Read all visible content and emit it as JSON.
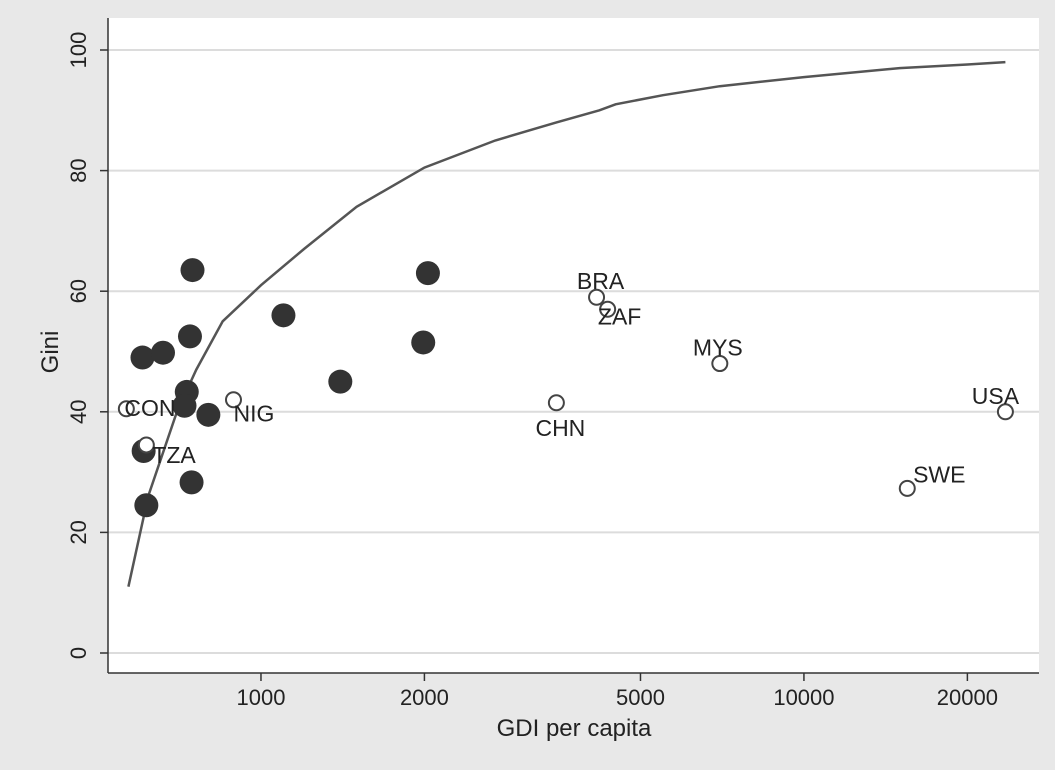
{
  "chart_data": {
    "type": "scatter",
    "xlabel": "GDI per capita",
    "ylabel": "Gini",
    "x_scale": "log",
    "xlim": [
      550,
      25000
    ],
    "ylim": [
      0,
      100
    ],
    "x_ticks": [
      {
        "value": 1000,
        "label": "1000"
      },
      {
        "value": 2000,
        "label": "2000"
      },
      {
        "value": 5000,
        "label": "5000"
      },
      {
        "value": 10000,
        "label": "10000"
      },
      {
        "value": 20000,
        "label": "20000"
      }
    ],
    "y_ticks": [
      {
        "value": 0,
        "label": "0"
      },
      {
        "value": 20,
        "label": "20"
      },
      {
        "value": 40,
        "label": "40"
      },
      {
        "value": 60,
        "label": "60"
      },
      {
        "value": 80,
        "label": "80"
      },
      {
        "value": 100,
        "label": "100"
      }
    ],
    "grid": true,
    "filled_points": [
      {
        "x": 605,
        "y": 49
      },
      {
        "x": 660,
        "y": 49.8
      },
      {
        "x": 608,
        "y": 33.5
      },
      {
        "x": 615,
        "y": 24.5
      },
      {
        "x": 748,
        "y": 63.5
      },
      {
        "x": 740,
        "y": 52.5
      },
      {
        "x": 730,
        "y": 43.3
      },
      {
        "x": 723,
        "y": 41
      },
      {
        "x": 745,
        "y": 28.3
      },
      {
        "x": 800,
        "y": 39.5
      },
      {
        "x": 1100,
        "y": 56
      },
      {
        "x": 1400,
        "y": 45
      },
      {
        "x": 1990,
        "y": 51.5
      },
      {
        "x": 2030,
        "y": 63
      }
    ],
    "labeled_points": [
      {
        "label": "CON",
        "x": 565,
        "y": 40.5
      },
      {
        "label": "TZA",
        "x": 615,
        "y": 34.5
      },
      {
        "label": "NIG",
        "x": 890,
        "y": 42
      },
      {
        "label": "CHN",
        "x": 3500,
        "y": 41.5
      },
      {
        "label": "BRA",
        "x": 4150,
        "y": 59
      },
      {
        "label": "ZAF",
        "x": 4350,
        "y": 57
      },
      {
        "label": "MYS",
        "x": 7000,
        "y": 48
      },
      {
        "label": "SWE",
        "x": 15500,
        "y": 27.3
      },
      {
        "label": "USA",
        "x": 23500,
        "y": 40
      }
    ],
    "curve": {
      "x": [
        570,
        620,
        700,
        760,
        850,
        1000,
        1200,
        1500,
        2000,
        2700,
        3500,
        4200,
        4500,
        5500,
        7000,
        10000,
        15000,
        20000,
        23500
      ],
      "y": [
        11,
        26,
        40,
        47,
        55,
        61,
        67,
        74,
        80.5,
        85,
        88,
        90,
        91,
        92.5,
        94,
        95.5,
        97,
        97.6,
        98
      ]
    }
  }
}
